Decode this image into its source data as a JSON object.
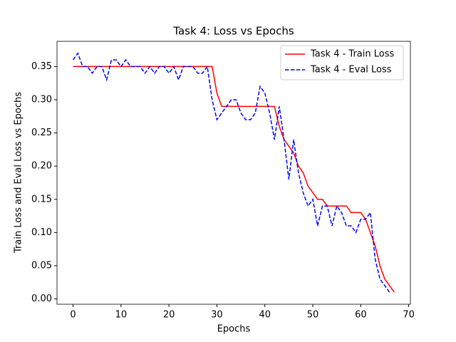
{
  "chart_data": {
    "type": "line",
    "title": "Task 4: Loss vs Epochs",
    "x_label": "Epochs",
    "y_label": "Train Loss and Eval Loss vs Epochs",
    "x": [
      0,
      1,
      2,
      3,
      4,
      5,
      6,
      7,
      8,
      9,
      10,
      11,
      12,
      13,
      14,
      15,
      16,
      17,
      18,
      19,
      20,
      21,
      22,
      23,
      24,
      25,
      26,
      27,
      28,
      29,
      30,
      31,
      32,
      33,
      34,
      35,
      36,
      37,
      38,
      39,
      40,
      41,
      42,
      43,
      44,
      45,
      46,
      47,
      48,
      49,
      50,
      51,
      52,
      53,
      54,
      55,
      56,
      57,
      58,
      59,
      60,
      61,
      62,
      63,
      64,
      65,
      66,
      67
    ],
    "series": [
      {
        "name": "Task 4 - Train Loss",
        "color": "#ff0000",
        "dash": "solid",
        "values": [
          0.35,
          0.35,
          0.35,
          0.35,
          0.35,
          0.35,
          0.35,
          0.35,
          0.35,
          0.35,
          0.35,
          0.35,
          0.35,
          0.35,
          0.35,
          0.35,
          0.35,
          0.35,
          0.35,
          0.35,
          0.35,
          0.35,
          0.35,
          0.35,
          0.35,
          0.35,
          0.35,
          0.35,
          0.35,
          0.35,
          0.31,
          0.29,
          0.29,
          0.29,
          0.29,
          0.29,
          0.29,
          0.29,
          0.29,
          0.29,
          0.29,
          0.29,
          0.29,
          0.26,
          0.24,
          0.23,
          0.22,
          0.2,
          0.19,
          0.17,
          0.16,
          0.15,
          0.15,
          0.14,
          0.14,
          0.14,
          0.14,
          0.14,
          0.13,
          0.13,
          0.13,
          0.12,
          0.1,
          0.08,
          0.05,
          0.03,
          0.02,
          0.01
        ]
      },
      {
        "name": "Task 4 - Eval Loss",
        "color": "#0000ff",
        "dash": "dashed",
        "values": [
          0.36,
          0.37,
          0.35,
          0.35,
          0.34,
          0.35,
          0.35,
          0.33,
          0.36,
          0.36,
          0.35,
          0.36,
          0.35,
          0.35,
          0.35,
          0.34,
          0.35,
          0.34,
          0.35,
          0.35,
          0.34,
          0.35,
          0.33,
          0.35,
          0.35,
          0.35,
          0.34,
          0.34,
          0.35,
          0.3,
          0.27,
          0.28,
          0.29,
          0.3,
          0.3,
          0.28,
          0.27,
          0.27,
          0.28,
          0.32,
          0.31,
          0.28,
          0.24,
          0.29,
          0.24,
          0.18,
          0.24,
          0.19,
          0.16,
          0.14,
          0.15,
          0.11,
          0.14,
          0.14,
          0.11,
          0.14,
          0.13,
          0.11,
          0.11,
          0.1,
          0.12,
          0.12,
          0.13,
          0.06,
          0.03,
          0.02,
          0.01,
          null
        ]
      }
    ],
    "xlim": [
      -3.35,
      70.35
    ],
    "xticks": [
      0,
      10,
      20,
      30,
      40,
      50,
      60,
      70
    ],
    "ylim": [
      -0.008,
      0.388
    ],
    "yticks": [
      {
        "value": 0,
        "label": "0.00"
      },
      {
        "value": 0.05,
        "label": "0.05"
      },
      {
        "value": 0.1,
        "label": "0.10"
      },
      {
        "value": 0.15,
        "label": "0.15"
      },
      {
        "value": 0.2,
        "label": "0.20"
      },
      {
        "value": 0.25,
        "label": "0.25"
      },
      {
        "value": 0.3,
        "label": "0.30"
      },
      {
        "value": 0.35,
        "label": "0.35"
      }
    ],
    "legend": "upper right",
    "grid": false
  }
}
